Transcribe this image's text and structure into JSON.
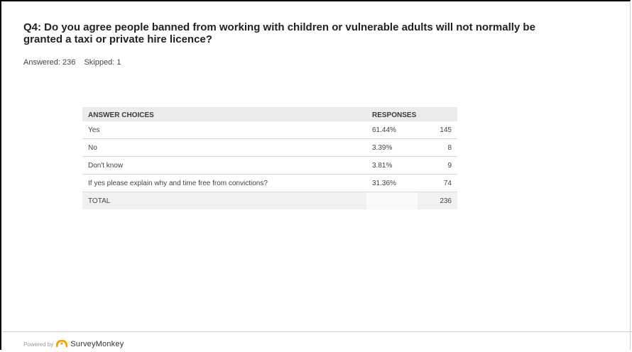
{
  "question": {
    "title": "Q4: Do you agree people banned from working with children or vulnerable adults will not normally be granted a taxi or private hire licence?"
  },
  "stats": {
    "answered": "Answered: 236",
    "skipped": "Skipped: 1"
  },
  "table": {
    "headers": {
      "choices": "ANSWER CHOICES",
      "responses": "RESPONSES"
    },
    "rows": [
      {
        "label": "Yes",
        "percent": "61.44%",
        "count": "145"
      },
      {
        "label": "No",
        "percent": "3.39%",
        "count": "8"
      },
      {
        "label": "Don't know",
        "percent": "3.81%",
        "count": "9"
      },
      {
        "label": "If yes please explain why and time free from convictions?",
        "percent": "31.36%",
        "count": "74"
      }
    ],
    "total": {
      "label": "TOTAL",
      "count": "236"
    }
  },
  "footer": {
    "powered_by": "Powered by",
    "brand": "SurveyMonkey",
    "brand_color": "#f0a500"
  }
}
